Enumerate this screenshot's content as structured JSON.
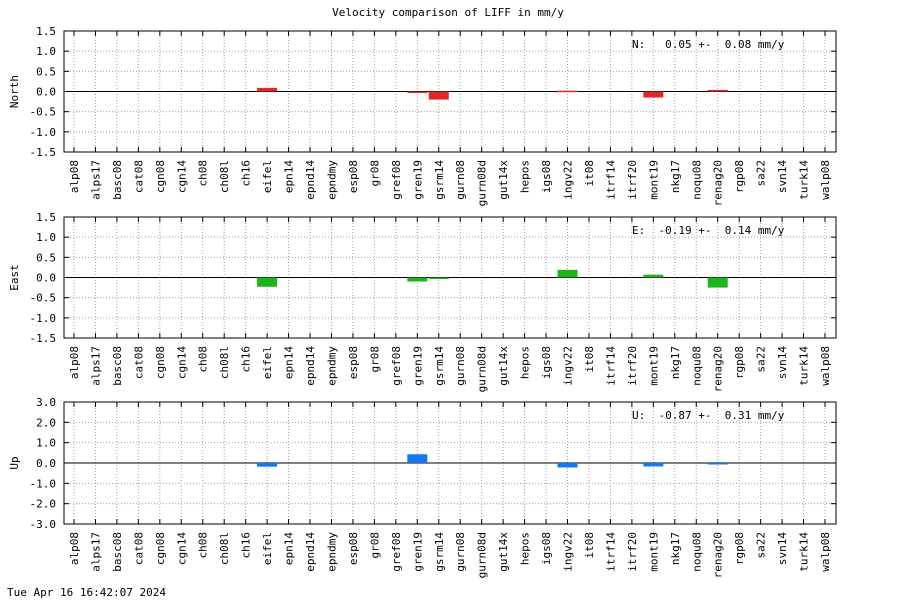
{
  "title": "Velocity comparison of LIFF in mm/y",
  "footer": "Tue Apr 16 16:42:07 2024",
  "chart_data": [
    {
      "type": "bar",
      "ylabel": "North",
      "ylim": [
        -1.5,
        1.5
      ],
      "yticks": [
        "1.5",
        "1.0",
        "0.5",
        "0.0",
        "-0.5",
        "-1.0",
        "-1.5"
      ],
      "annotation": "N:   0.05 +-  0.08 mm/y",
      "color": "#e02828",
      "categories": [
        "alp08",
        "alps17",
        "basc08",
        "cat08",
        "cgn08",
        "cgn14",
        "ch08",
        "ch08l",
        "ch16",
        "eifel",
        "epn14",
        "epnd14",
        "epndmy",
        "esp08",
        "gr08",
        "gref08",
        "gren19",
        "gsrm14",
        "gurn08",
        "gurn08d",
        "gut14x",
        "hepos",
        "igs08",
        "ingv22",
        "it08",
        "itrf14",
        "itrf20",
        "mont19",
        "nkg17",
        "noqu08",
        "renag20",
        "rgp08",
        "sa22",
        "svn14",
        "turk14",
        "walp08"
      ],
      "values": [
        0,
        0,
        0,
        0,
        0,
        0,
        0,
        0,
        0,
        0.09,
        0,
        0,
        0,
        0,
        0,
        0,
        -0.03,
        -0.2,
        0,
        0,
        0,
        0,
        0,
        0.02,
        0,
        0,
        0,
        -0.15,
        0,
        0,
        0.04,
        0,
        0,
        0,
        0,
        0
      ]
    },
    {
      "type": "bar",
      "ylabel": "East",
      "ylim": [
        -1.5,
        1.5
      ],
      "yticks": [
        "1.5",
        "1.0",
        "0.5",
        "0.0",
        "-0.5",
        "-1.0",
        "-1.5"
      ],
      "annotation": "E:  -0.19 +-  0.14 mm/y",
      "color": "#1eb41e",
      "categories": [
        "alp08",
        "alps17",
        "basc08",
        "cat08",
        "cgn08",
        "cgn14",
        "ch08",
        "ch08l",
        "ch16",
        "eifel",
        "epn14",
        "epnd14",
        "epndmy",
        "esp08",
        "gr08",
        "gref08",
        "gren19",
        "gsrm14",
        "gurn08",
        "gurn08d",
        "gut14x",
        "hepos",
        "igs08",
        "ingv22",
        "it08",
        "itrf14",
        "itrf20",
        "mont19",
        "nkg17",
        "noqu08",
        "renag20",
        "rgp08",
        "sa22",
        "svn14",
        "turk14",
        "walp08"
      ],
      "values": [
        0,
        0,
        0,
        0,
        0,
        0,
        0,
        0,
        0,
        -0.23,
        0,
        0,
        0,
        0,
        0,
        0,
        -0.1,
        -0.03,
        0,
        0,
        0,
        0,
        0,
        0.19,
        0,
        0,
        0,
        0.07,
        0,
        0,
        -0.25,
        0,
        0,
        0,
        0,
        0
      ]
    },
    {
      "type": "bar",
      "ylabel": "Up",
      "ylim": [
        -3.0,
        3.0
      ],
      "yticks": [
        "3.0",
        "2.0",
        "1.0",
        "0.0",
        "-1.0",
        "-2.0",
        "-3.0"
      ],
      "annotation": "U:  -0.87 +-  0.31 mm/y",
      "color": "#1478f0",
      "categories": [
        "alp08",
        "alps17",
        "basc08",
        "cat08",
        "cgn08",
        "cgn14",
        "ch08",
        "ch08l",
        "ch16",
        "eifel",
        "epn14",
        "epnd14",
        "epndmy",
        "esp08",
        "gr08",
        "gref08",
        "gren19",
        "gsrm14",
        "gurn08",
        "gurn08d",
        "gut14x",
        "hepos",
        "igs08",
        "ingv22",
        "it08",
        "itrf14",
        "itrf20",
        "mont19",
        "nkg17",
        "noqu08",
        "renag20",
        "rgp08",
        "sa22",
        "svn14",
        "turk14",
        "walp08"
      ],
      "values": [
        0,
        0,
        0,
        0,
        0,
        0,
        0,
        0,
        0,
        -0.18,
        0,
        0,
        0,
        0,
        0,
        0,
        0.43,
        0,
        0,
        0,
        0,
        0,
        0,
        -0.22,
        0,
        0,
        0,
        -0.17,
        0,
        0,
        -0.05,
        0,
        0,
        0,
        0,
        0
      ]
    }
  ]
}
